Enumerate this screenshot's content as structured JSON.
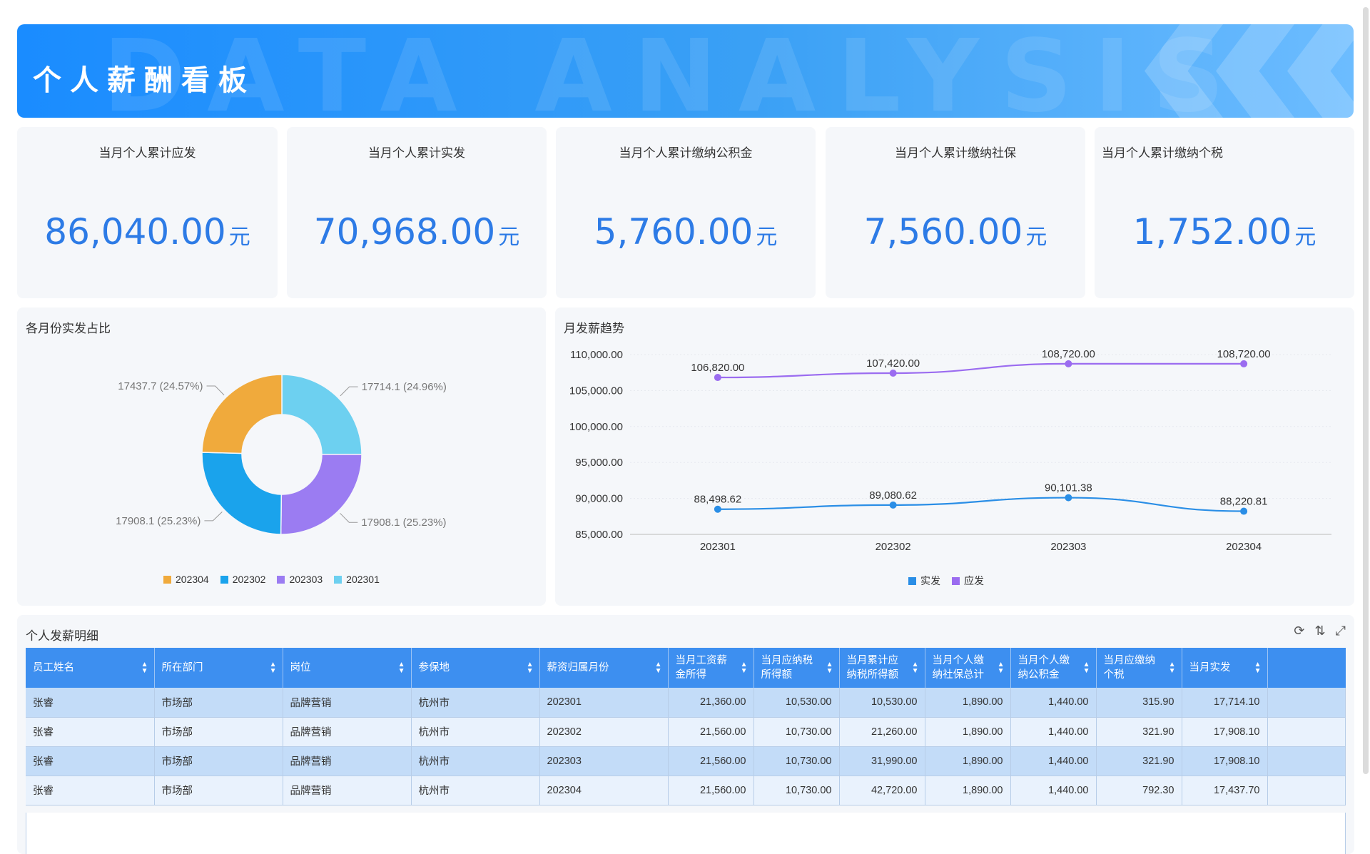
{
  "header": {
    "title": "个人薪酬看板",
    "watermark": "DATA ANALYSIS"
  },
  "kpis": [
    {
      "label": "当月个人累计应发",
      "value": "86,040.00",
      "unit": "元"
    },
    {
      "label": "当月个人累计实发",
      "value": "70,968.00",
      "unit": "元"
    },
    {
      "label": "当月个人累计缴纳公积金",
      "value": "5,760.00",
      "unit": "元"
    },
    {
      "label": "当月个人累计缴纳社保",
      "value": "7,560.00",
      "unit": "元"
    },
    {
      "label": "当月个人累计缴纳个税",
      "value": "1,752.00",
      "unit": "元"
    }
  ],
  "donut": {
    "title": "各月份实发占比",
    "legend": [
      {
        "label": "202304",
        "color": "#f0aa3c"
      },
      {
        "label": "202302",
        "color": "#1aa3ec"
      },
      {
        "label": "202303",
        "color": "#9b7cf2"
      },
      {
        "label": "202301",
        "color": "#6dd0f0"
      }
    ]
  },
  "line": {
    "title": "月发薪趋势",
    "legend": [
      {
        "label": "实发",
        "color": "#2a8ee6"
      },
      {
        "label": "应发",
        "color": "#9b6cf0"
      }
    ]
  },
  "chart_data": [
    {
      "type": "pie",
      "title": "各月份实发占比",
      "categories": [
        "202301",
        "202303",
        "202302",
        "202304"
      ],
      "values": [
        17714.1,
        17908.1,
        17908.1,
        17437.7
      ],
      "labels": [
        "17714.1 (24.96%)",
        "17908.1 (25.23%)",
        "17908.1 (25.23%)",
        "17437.7 (24.57%)"
      ],
      "colors": [
        "#6dd0f0",
        "#9b7cf2",
        "#1aa3ec",
        "#f0aa3c"
      ]
    },
    {
      "type": "line",
      "title": "月发薪趋势",
      "categories": [
        "202301",
        "202302",
        "202303",
        "202304"
      ],
      "ylim": [
        85000,
        110000
      ],
      "yticks": [
        "85,000.00",
        "90,000.00",
        "95,000.00",
        "100,000.00",
        "105,000.00",
        "110,000.00"
      ],
      "series": [
        {
          "name": "实发",
          "values": [
            88498.62,
            89080.62,
            90101.38,
            88220.81
          ],
          "labels": [
            "88,498.62",
            "89,080.62",
            "90,101.38",
            "88,220.81"
          ],
          "color": "#2a8ee6"
        },
        {
          "name": "应发",
          "values": [
            106820,
            107420,
            108720,
            108720
          ],
          "labels": [
            "106,820.00",
            "107,420.00",
            "108,720.00",
            "108,720.00"
          ],
          "color": "#9b6cf0"
        }
      ]
    }
  ],
  "table": {
    "title": "个人发薪明细",
    "headers": [
      "员工姓名",
      "所在部门",
      "岗位",
      "参保地",
      "薪资归属月份",
      "当月工资薪金所得",
      "当月应纳税所得额",
      "当月累计应纳税所得额",
      "当月个人缴纳社保总计",
      "当月个人缴纳公积金",
      "当月应缴纳个税",
      "当月实发"
    ],
    "rows": [
      [
        "张睿",
        "市场部",
        "品牌营销",
        "杭州市",
        "202301",
        "21,360.00",
        "10,530.00",
        "10,530.00",
        "1,890.00",
        "1,440.00",
        "315.90",
        "17,714.10"
      ],
      [
        "张睿",
        "市场部",
        "品牌营销",
        "杭州市",
        "202302",
        "21,560.00",
        "10,730.00",
        "21,260.00",
        "1,890.00",
        "1,440.00",
        "321.90",
        "17,908.10"
      ],
      [
        "张睿",
        "市场部",
        "品牌营销",
        "杭州市",
        "202303",
        "21,560.00",
        "10,730.00",
        "31,990.00",
        "1,890.00",
        "1,440.00",
        "321.90",
        "17,908.10"
      ],
      [
        "张睿",
        "市场部",
        "品牌营销",
        "杭州市",
        "202304",
        "21,560.00",
        "10,730.00",
        "42,720.00",
        "1,890.00",
        "1,440.00",
        "792.30",
        "17,437.70"
      ]
    ],
    "tools": [
      "refresh-icon",
      "sort-icon",
      "fullscreen-icon"
    ]
  }
}
